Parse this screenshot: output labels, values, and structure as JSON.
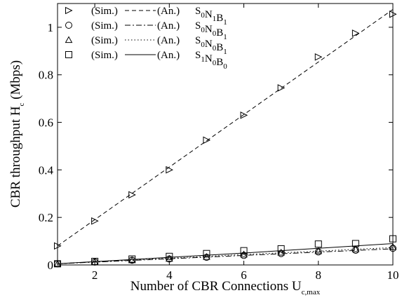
{
  "chart_data": {
    "type": "scatter",
    "xlabel": {
      "main": "Number of CBR Connections U",
      "sub": "c,max"
    },
    "ylabel": {
      "main": "CBR throughput H",
      "sub": "c",
      "tail": " (Mbps)"
    },
    "xlim": [
      1,
      10
    ],
    "ylim": [
      0,
      1.1
    ],
    "x_ticks": [
      2,
      4,
      6,
      8,
      10
    ],
    "y_ticks": [
      0,
      0.2,
      0.4,
      0.6,
      0.8,
      1
    ],
    "y_tick_labels": [
      "0",
      "0.2",
      "0.4",
      "0.6",
      "0.8",
      "1"
    ],
    "grid": false,
    "legend_position": "top-left",
    "x": [
      1,
      2,
      3,
      4,
      5,
      6,
      7,
      8,
      9,
      10
    ],
    "series": [
      {
        "sim_label": "(Sim.)",
        "an_label": "(An.)",
        "name_parts": [
          [
            "S",
            "0"
          ],
          [
            "N",
            "1"
          ],
          [
            "B",
            "1"
          ]
        ],
        "marker": "triangle-right",
        "line_style": "dashed",
        "sim": [
          0.08,
          0.185,
          0.295,
          0.4,
          0.525,
          0.63,
          0.745,
          0.875,
          0.975,
          1.055
        ],
        "analytic_x": [
          1,
          10
        ],
        "analytic_y": [
          0.08,
          1.075
        ]
      },
      {
        "sim_label": "(Sim.)",
        "an_label": "(An.)",
        "name_parts": [
          [
            "S",
            "0"
          ],
          [
            "N",
            "0"
          ],
          [
            "B",
            "1"
          ]
        ],
        "marker": "circle",
        "line_style": "dashdot",
        "sim": [
          0.005,
          0.012,
          0.02,
          0.025,
          0.032,
          0.04,
          0.048,
          0.055,
          0.062,
          0.07
        ],
        "analytic_x": [
          1,
          2,
          3,
          4,
          5,
          6,
          7,
          8,
          9,
          10
        ],
        "analytic_y": [
          0.005,
          0.012,
          0.019,
          0.026,
          0.033,
          0.04,
          0.047,
          0.054,
          0.061,
          0.068
        ]
      },
      {
        "sim_label": "(Sim.)",
        "an_label": "(An.)",
        "name_parts": [
          [
            "S",
            "0"
          ],
          [
            "N",
            "0"
          ],
          [
            "B",
            "1"
          ]
        ],
        "marker": "triangle-up",
        "line_style": "dotted",
        "sim": [
          0.005,
          0.012,
          0.02,
          0.026,
          0.034,
          0.044,
          0.052,
          0.058,
          0.066,
          0.075
        ],
        "analytic_x": [
          1,
          2,
          3,
          4,
          5,
          6,
          7,
          8,
          9,
          10
        ],
        "analytic_y": [
          0.005,
          0.013,
          0.021,
          0.028,
          0.036,
          0.044,
          0.051,
          0.058,
          0.066,
          0.073
        ]
      },
      {
        "sim_label": "(Sim.)",
        "an_label": "(An.)",
        "name_parts": [
          [
            "S",
            "1"
          ],
          [
            "N",
            "0"
          ],
          [
            "B",
            "0"
          ]
        ],
        "marker": "square",
        "line_style": "solid",
        "sim": [
          0.005,
          0.015,
          0.025,
          0.036,
          0.048,
          0.06,
          0.068,
          0.088,
          0.09,
          0.11
        ],
        "analytic_x": [
          1,
          2,
          3,
          4,
          5,
          6,
          7,
          8,
          9,
          10
        ],
        "analytic_y": [
          0.005,
          0.014,
          0.023,
          0.032,
          0.041,
          0.05,
          0.06,
          0.07,
          0.08,
          0.09
        ]
      }
    ]
  }
}
